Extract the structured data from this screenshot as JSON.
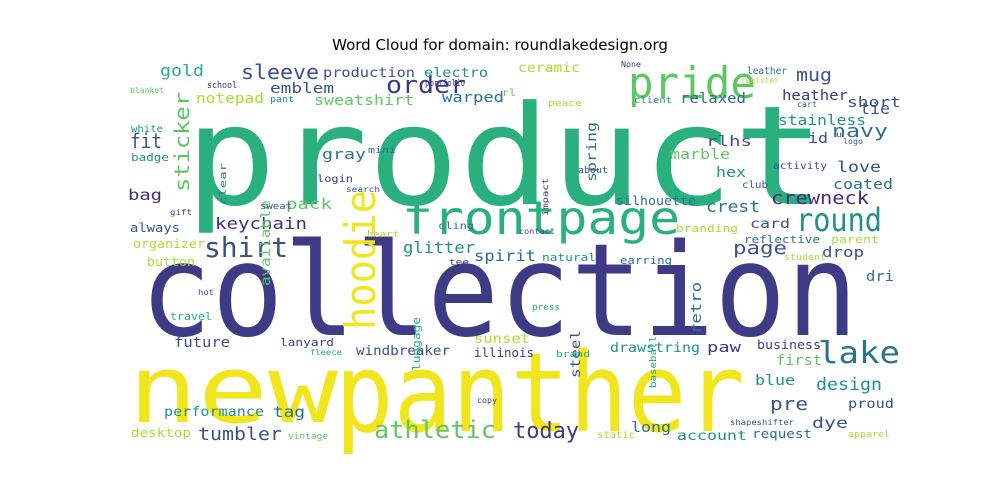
{
  "title": "Word Cloud for domain: roundlakedesign.org",
  "palette": {
    "dark_purple": "#472c7a",
    "indigo": "#3b518b",
    "steel_blue": "#2c718e",
    "teal": "#21918c",
    "sea_green": "#27ad81",
    "green": "#5cc863",
    "lime": "#aadc32",
    "yellow": "#fde725"
  },
  "words": [
    {
      "text": "product",
      "color": "#2ab07f"
    },
    {
      "text": "collection",
      "color": "#3e3a86"
    },
    {
      "text": "panther",
      "color": "#f1e51d"
    },
    {
      "text": "new",
      "color": "#f1e51d"
    },
    {
      "text": "frontpage",
      "color": "#2ab07f"
    },
    {
      "text": "pride",
      "color": "#5cc863"
    },
    {
      "text": "hoodie",
      "color": "#f1e51d"
    },
    {
      "text": "round",
      "color": "#21918c"
    },
    {
      "text": "lake",
      "color": "#2c718e"
    },
    {
      "text": "shirt",
      "color": "#3b518b"
    },
    {
      "text": "athletic",
      "color": "#5cc863"
    },
    {
      "text": "order",
      "color": "#3e3a86"
    },
    {
      "text": "today",
      "color": "#3e3a86"
    },
    {
      "text": "sleeve",
      "color": "#3b518b"
    },
    {
      "text": "crewneck",
      "color": "#472c7a"
    },
    {
      "text": "sticker",
      "color": "#5cc863"
    },
    {
      "text": "fit",
      "color": "#3b518b"
    },
    {
      "text": "tumbler",
      "color": "#3b518b"
    },
    {
      "text": "page",
      "color": "#3b518b"
    },
    {
      "text": "pre",
      "color": "#3b518b"
    },
    {
      "text": "keychain",
      "color": "#472c7a"
    },
    {
      "text": "mug",
      "color": "#3b518b"
    },
    {
      "text": "crest",
      "color": "#2c718e"
    },
    {
      "text": "design",
      "color": "#21918c"
    },
    {
      "text": "glitter",
      "color": "#21918c"
    },
    {
      "text": "spirit",
      "color": "#2c718e"
    },
    {
      "text": "emblem",
      "color": "#3b518b"
    },
    {
      "text": "navy",
      "color": "#2c718e"
    },
    {
      "text": "gold",
      "color": "#27ad81"
    },
    {
      "text": "sweatshirt",
      "color": "#5cc863"
    },
    {
      "text": "warped",
      "color": "#2c718e"
    },
    {
      "text": "pack",
      "color": "#5cc863"
    },
    {
      "text": "bag",
      "color": "#472c7a"
    },
    {
      "text": "gray",
      "color": "#2c718e"
    },
    {
      "text": "notepad",
      "color": "#aadc32"
    },
    {
      "text": "relaxed",
      "color": "#2c718e"
    },
    {
      "text": "rlhs",
      "color": "#3b518b"
    },
    {
      "text": "heather",
      "color": "#3e3a86"
    },
    {
      "text": "short",
      "color": "#3b518b"
    },
    {
      "text": "stainless",
      "color": "#21918c"
    },
    {
      "text": "tie",
      "color": "#3b518b"
    },
    {
      "text": "love",
      "color": "#3b518b"
    },
    {
      "text": "coated",
      "color": "#2c718e"
    },
    {
      "text": "marble",
      "color": "#5cc863"
    },
    {
      "text": "hex",
      "color": "#21918c"
    },
    {
      "text": "card",
      "color": "#3b518b"
    },
    {
      "text": "drop",
      "color": "#3b518b"
    },
    {
      "text": "dri",
      "color": "#2c718e"
    },
    {
      "text": "retro",
      "color": "#2c718e"
    },
    {
      "text": "production",
      "color": "#3b518b"
    },
    {
      "text": "electro",
      "color": "#21918c"
    },
    {
      "text": "ceramic",
      "color": "#aadc32"
    },
    {
      "text": "spring",
      "color": "#2c718e"
    },
    {
      "text": "available",
      "color": "#5cc863"
    },
    {
      "text": "silhouette",
      "color": "#2c718e"
    },
    {
      "text": "windbreaker",
      "color": "#3b518b"
    },
    {
      "text": "drawstring",
      "color": "#21918c"
    },
    {
      "text": "paw",
      "color": "#3e3a86"
    },
    {
      "text": "sunset",
      "color": "#aadc32"
    },
    {
      "text": "steel",
      "color": "#3b518b"
    },
    {
      "text": "future",
      "color": "#3b518b"
    },
    {
      "text": "performance",
      "color": "#21918c"
    },
    {
      "text": "tag",
      "color": "#2c718e"
    },
    {
      "text": "account",
      "color": "#21918c"
    },
    {
      "text": "dye",
      "color": "#3b518b"
    },
    {
      "text": "long",
      "color": "#2c718e"
    },
    {
      "text": "blue",
      "color": "#21918c"
    },
    {
      "text": "first",
      "color": "#5cc863"
    },
    {
      "text": "business",
      "color": "#3e3a86"
    },
    {
      "text": "proud",
      "color": "#3b518b"
    },
    {
      "text": "request",
      "color": "#2c718e"
    },
    {
      "text": "button",
      "color": "#aadc32"
    },
    {
      "text": "organizer",
      "color": "#aadc32"
    },
    {
      "text": "always",
      "color": "#3b518b"
    },
    {
      "text": "desktop",
      "color": "#aadc32"
    },
    {
      "text": "travel",
      "color": "#27ad81"
    },
    {
      "text": "lanyard",
      "color": "#3e3a86"
    },
    {
      "text": "illinois",
      "color": "#3e3a86"
    },
    {
      "text": "luggage",
      "color": "#27ad81"
    },
    {
      "text": "natural",
      "color": "#21918c"
    },
    {
      "text": "earring",
      "color": "#2c718e"
    },
    {
      "text": "branding",
      "color": "#aadc32"
    },
    {
      "text": "reflective",
      "color": "#2c718e"
    },
    {
      "text": "parent",
      "color": "#aadc32"
    },
    {
      "text": "student",
      "color": "#aadc32"
    },
    {
      "text": "apparel",
      "color": "#aadc32"
    },
    {
      "text": "shapeshifter",
      "color": "#3b518b"
    },
    {
      "text": "static",
      "color": "#aadc32"
    },
    {
      "text": "brand",
      "color": "#27ad81"
    },
    {
      "text": "copy",
      "color": "#3e3a86"
    },
    {
      "text": "press",
      "color": "#27ad81"
    },
    {
      "text": "baseball",
      "color": "#27ad81"
    },
    {
      "text": "fleece",
      "color": "#27ad81"
    },
    {
      "text": "vintage",
      "color": "#5cc863"
    },
    {
      "text": "hot",
      "color": "#3b518b"
    },
    {
      "text": "gift",
      "color": "#3e3a86"
    },
    {
      "text": "sweat",
      "color": "#3b518b"
    },
    {
      "text": "heart",
      "color": "#aadc32"
    },
    {
      "text": "tee",
      "color": "#3e3a86"
    },
    {
      "text": "cling",
      "color": "#2c718e"
    },
    {
      "text": "contact",
      "color": "#3b518b"
    },
    {
      "text": "search",
      "color": "#3b518b"
    },
    {
      "text": "login",
      "color": "#3e3a86"
    },
    {
      "text": "mini",
      "color": "#2c718e"
    },
    {
      "text": "impact",
      "color": "#472c7a"
    },
    {
      "text": "about",
      "color": "#3b518b"
    },
    {
      "text": "clear",
      "color": "#2c718e"
    },
    {
      "text": "badge",
      "color": "#21918c"
    },
    {
      "text": "white",
      "color": "#21918c"
    },
    {
      "text": "school",
      "color": "#3e3a86"
    },
    {
      "text": "blanket",
      "color": "#5cc863"
    },
    {
      "text": "pant",
      "color": "#21918c"
    },
    {
      "text": "portfolio",
      "color": "#3e3a86"
    },
    {
      "text": "rl",
      "color": "#5cc863"
    },
    {
      "text": "peace",
      "color": "#aadc32"
    },
    {
      "text": "None",
      "color": "#3e3a86"
    },
    {
      "text": "client",
      "color": "#21918c"
    },
    {
      "text": "leather",
      "color": "#2c718e"
    },
    {
      "text": "register",
      "color": "#aadc32"
    },
    {
      "text": "cart",
      "color": "#3b518b"
    },
    {
      "text": "u",
      "color": "#3b518b"
    },
    {
      "text": "logo",
      "color": "#3b518b"
    },
    {
      "text": "id",
      "color": "#3b518b"
    },
    {
      "text": "activity",
      "color": "#3b518b"
    },
    {
      "text": "club",
      "color": "#3b518b"
    }
  ]
}
